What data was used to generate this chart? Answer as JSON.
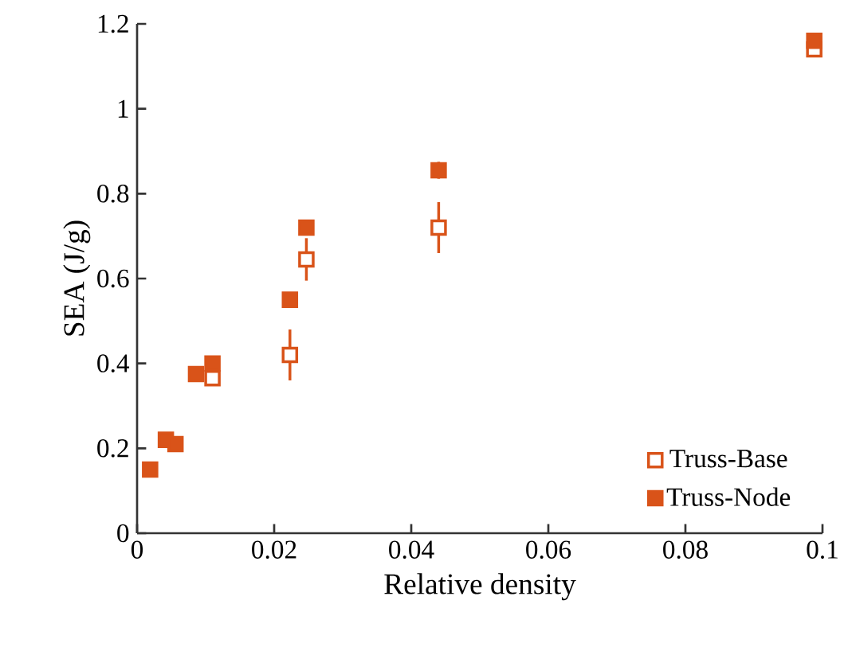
{
  "chart_data": {
    "type": "scatter",
    "xlabel": "Relative density",
    "ylabel": "SEA (J/g)",
    "xlim": [
      0,
      0.1
    ],
    "ylim": [
      0,
      1.2
    ],
    "xticks": [
      0,
      0.02,
      0.04,
      0.06,
      0.08,
      0.1
    ],
    "yticks": [
      0,
      0.2,
      0.4,
      0.6,
      0.8,
      1,
      1.2
    ],
    "marker": "square",
    "legend": "bottom right",
    "grid": false,
    "series": [
      {
        "name": "Truss-Base",
        "color": "#d95319",
        "x": [
          null,
          null,
          null,
          null,
          0.011,
          0.0223,
          0.0247,
          0.044,
          0.0988
        ],
        "values": [
          null,
          null,
          null,
          null,
          0.365,
          0.42,
          0.645,
          0.72,
          1.14
        ],
        "errors": [
          null,
          null,
          null,
          null,
          null,
          0.06,
          0.05,
          0.06,
          null
        ]
      },
      {
        "name": "Truss-Node",
        "color": "#d95319",
        "x": [
          0.0019,
          0.0042,
          0.0056,
          0.0086,
          0.011,
          0.0223,
          0.0247,
          0.044,
          0.0988
        ],
        "values": [
          0.15,
          0.22,
          0.21,
          0.375,
          0.4,
          0.55,
          0.72,
          0.855,
          1.16
        ],
        "errors": [
          null,
          null,
          null,
          null,
          null,
          null,
          null,
          0.02,
          null
        ]
      }
    ]
  }
}
